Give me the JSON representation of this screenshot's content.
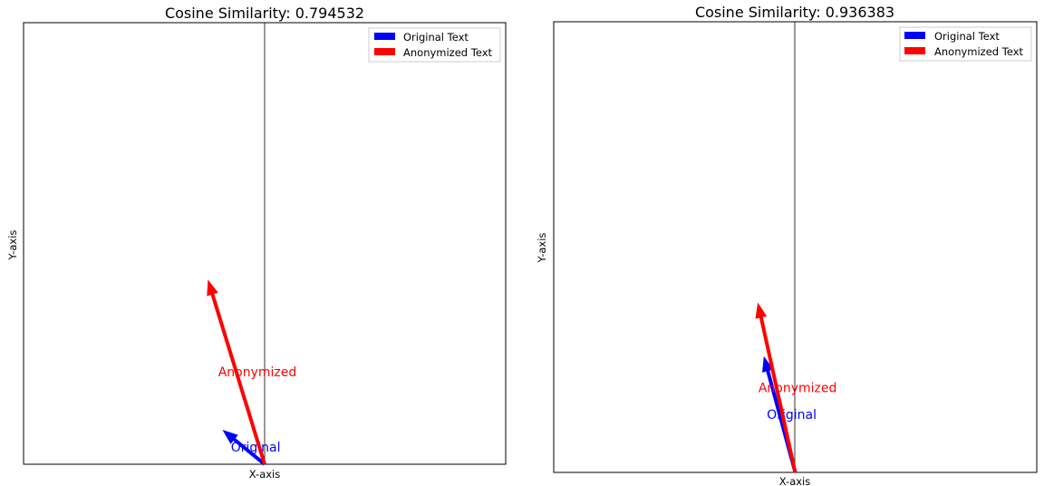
{
  "chart_data": [
    {
      "type": "quiver",
      "title": "Cosine Similarity: 0.794532",
      "xlabel": "X-axis",
      "ylabel": "Y-axis",
      "xlim": [
        -1,
        1
      ],
      "ylim": [
        0,
        1
      ],
      "grid": false,
      "legend": {
        "placement": "top-right",
        "entries": [
          {
            "label": "Original Text",
            "color": "#0000ff"
          },
          {
            "label": "Anonymized Text",
            "color": "#ff0000"
          }
        ]
      },
      "vectors": [
        {
          "name": "Original Text",
          "label": "Original",
          "color": "#0000ff",
          "x": -0.175,
          "y": 0.078
        },
        {
          "name": "Anonymized Text",
          "label": "Anonymized",
          "color": "#ff0000",
          "x": -0.235,
          "y": 0.418
        }
      ]
    },
    {
      "type": "quiver",
      "title": "Cosine Similarity: 0.936383",
      "xlabel": "X-axis",
      "ylabel": "Y-axis",
      "xlim": [
        -1,
        1
      ],
      "ylim": [
        0,
        1
      ],
      "grid": false,
      "legend": {
        "placement": "top-right",
        "entries": [
          {
            "label": "Original Text",
            "color": "#0000ff"
          },
          {
            "label": "Anonymized Text",
            "color": "#ff0000"
          }
        ]
      },
      "vectors": [
        {
          "name": "Original Text",
          "label": "Original",
          "color": "#0000ff",
          "x": -0.13,
          "y": 0.258
        },
        {
          "name": "Anonymized Text",
          "label": "Anonymized",
          "color": "#ff0000",
          "x": -0.155,
          "y": 0.377
        }
      ]
    }
  ]
}
